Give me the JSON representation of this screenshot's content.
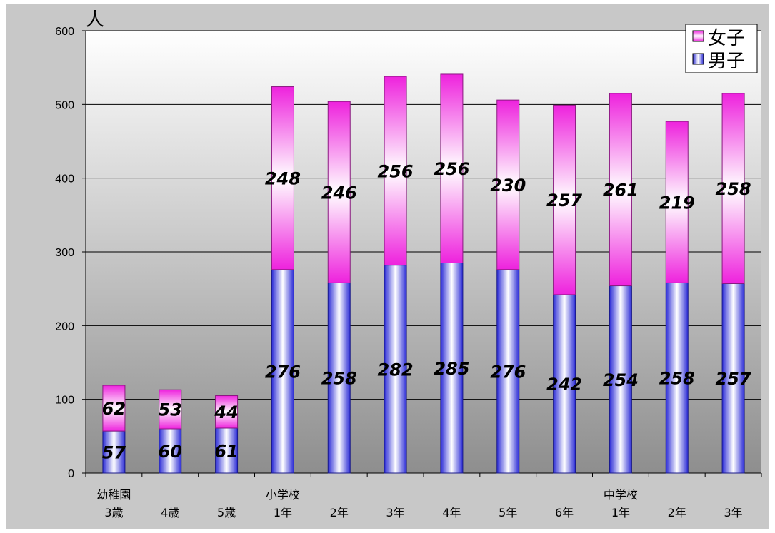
{
  "chart_data": {
    "type": "bar",
    "stacked": true,
    "unit_label": "人",
    "ylim": [
      0,
      600
    ],
    "yticks": [
      0,
      100,
      200,
      300,
      400,
      500,
      600
    ],
    "grid": true,
    "legend_position": "top-right",
    "group_labels": [
      "幼稚園",
      "",
      "",
      "小学校",
      "",
      "",
      "",
      "",
      "",
      "中学校",
      "",
      ""
    ],
    "categories": [
      "3歳",
      "4歳",
      "5歳",
      "1年",
      "2年",
      "3年",
      "4年",
      "5年",
      "6年",
      "1年",
      "2年",
      "3年"
    ],
    "series": [
      {
        "name": "男子",
        "values": [
          57,
          60,
          61,
          276,
          258,
          282,
          285,
          276,
          242,
          254,
          258,
          257
        ]
      },
      {
        "name": "女子",
        "values": [
          62,
          53,
          44,
          248,
          246,
          256,
          256,
          230,
          257,
          261,
          219,
          258
        ]
      }
    ],
    "colors": {
      "male_edge": "#2b2bd6",
      "male_light": "#ffffff",
      "female_edge": "#ee22dd",
      "female_light": "#ffffff",
      "plot_top": "#ffffff",
      "plot_bottom": "#8e8e8e",
      "outer_bg": "#c8c8c8"
    }
  }
}
